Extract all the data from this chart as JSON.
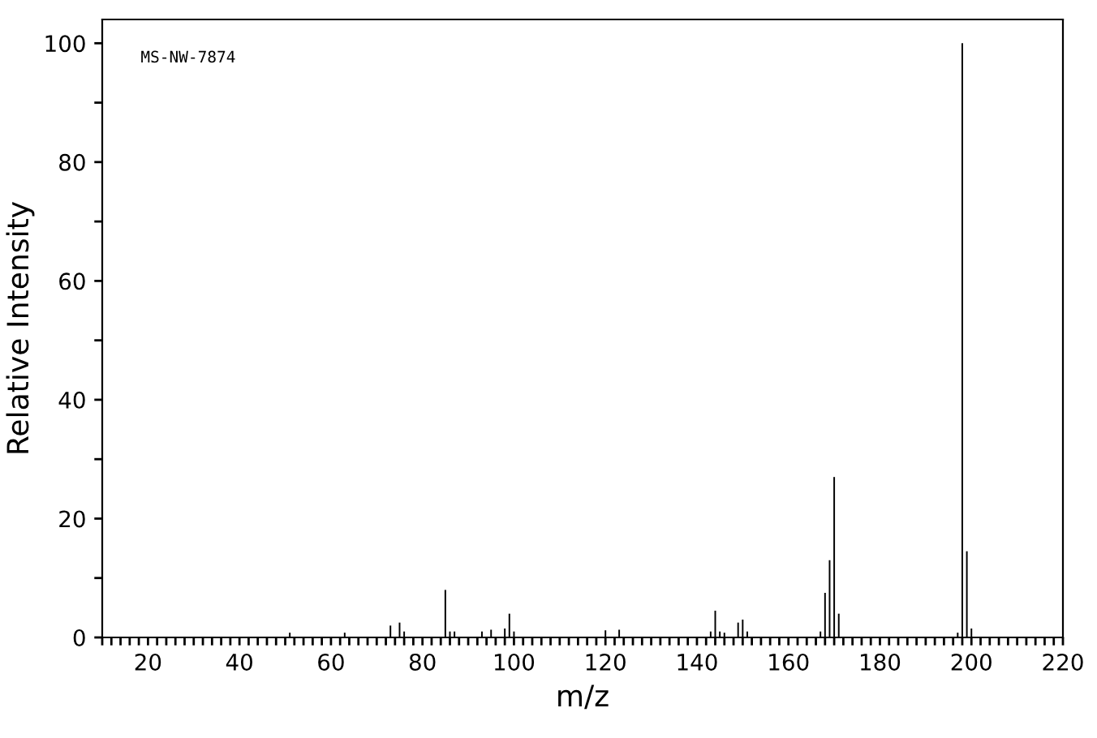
{
  "chart_data": {
    "type": "bar",
    "xlabel": "m/z",
    "ylabel": "Relative Intensity",
    "annotations": [
      "MS-NW-7874"
    ],
    "color": "#000000",
    "x": [
      51,
      63,
      73,
      75,
      76,
      85,
      86,
      87,
      93,
      95,
      98,
      99,
      100,
      120,
      123,
      143,
      144,
      145,
      146,
      149,
      150,
      151,
      167,
      168,
      169,
      170,
      171,
      197,
      198,
      199,
      200
    ],
    "values": [
      0.8,
      0.8,
      2,
      2.5,
      1,
      8,
      1,
      1,
      1,
      1.3,
      1.5,
      4,
      1,
      1.2,
      1.3,
      1,
      4.5,
      1,
      0.8,
      2.5,
      3,
      1,
      1,
      7.5,
      13,
      27,
      4,
      0.8,
      100,
      14.5,
      1.5
    ],
    "xlim": [
      10,
      220
    ],
    "ylim": [
      0,
      104
    ],
    "xticks": [
      {
        "value": 10,
        "label": null
      },
      {
        "value": 12,
        "label": null
      },
      {
        "value": 14,
        "label": null
      },
      {
        "value": 16,
        "label": null
      },
      {
        "value": 18,
        "label": null
      },
      20,
      {
        "value": 22,
        "label": null
      },
      {
        "value": 24,
        "label": null
      },
      {
        "value": 26,
        "label": null
      },
      {
        "value": 28,
        "label": null
      },
      {
        "value": 30,
        "label": null
      },
      {
        "value": 32,
        "label": null
      },
      {
        "value": 34,
        "label": null
      },
      {
        "value": 36,
        "label": null
      },
      {
        "value": 38,
        "label": null
      },
      40,
      {
        "value": 42,
        "label": null
      },
      {
        "value": 44,
        "label": null
      },
      {
        "value": 46,
        "label": null
      },
      {
        "value": 48,
        "label": null
      },
      {
        "value": 50,
        "label": null
      },
      {
        "value": 52,
        "label": null
      },
      {
        "value": 54,
        "label": null
      },
      {
        "value": 56,
        "label": null
      },
      {
        "value": 58,
        "label": null
      },
      60,
      {
        "value": 62,
        "label": null
      },
      {
        "value": 64,
        "label": null
      },
      {
        "value": 66,
        "label": null
      },
      {
        "value": 68,
        "label": null
      },
      {
        "value": 70,
        "label": null
      },
      {
        "value": 72,
        "label": null
      },
      {
        "value": 74,
        "label": null
      },
      {
        "value": 76,
        "label": null
      },
      {
        "value": 78,
        "label": null
      },
      80,
      {
        "value": 82,
        "label": null
      },
      {
        "value": 84,
        "label": null
      },
      {
        "value": 86,
        "label": null
      },
      {
        "value": 88,
        "label": null
      },
      {
        "value": 90,
        "label": null
      },
      {
        "value": 92,
        "label": null
      },
      {
        "value": 94,
        "label": null
      },
      {
        "value": 96,
        "label": null
      },
      {
        "value": 98,
        "label": null
      },
      100,
      {
        "value": 102,
        "label": null
      },
      {
        "value": 104,
        "label": null
      },
      {
        "value": 106,
        "label": null
      },
      {
        "value": 108,
        "label": null
      },
      {
        "value": 110,
        "label": null
      },
      {
        "value": 112,
        "label": null
      },
      {
        "value": 114,
        "label": null
      },
      {
        "value": 116,
        "label": null
      },
      {
        "value": 118,
        "label": null
      },
      120,
      {
        "value": 122,
        "label": null
      },
      {
        "value": 124,
        "label": null
      },
      {
        "value": 126,
        "label": null
      },
      {
        "value": 128,
        "label": null
      },
      {
        "value": 130,
        "label": null
      },
      {
        "value": 132,
        "label": null
      },
      {
        "value": 134,
        "label": null
      },
      {
        "value": 136,
        "label": null
      },
      {
        "value": 138,
        "label": null
      },
      140,
      {
        "value": 142,
        "label": null
      },
      {
        "value": 144,
        "label": null
      },
      {
        "value": 146,
        "label": null
      },
      {
        "value": 148,
        "label": null
      },
      {
        "value": 150,
        "label": null
      },
      {
        "value": 152,
        "label": null
      },
      {
        "value": 154,
        "label": null
      },
      {
        "value": 156,
        "label": null
      },
      {
        "value": 158,
        "label": null
      },
      160,
      {
        "value": 162,
        "label": null
      },
      {
        "value": 164,
        "label": null
      },
      {
        "value": 166,
        "label": null
      },
      {
        "value": 168,
        "label": null
      },
      {
        "value": 170,
        "label": null
      },
      {
        "value": 172,
        "label": null
      },
      {
        "value": 174,
        "label": null
      },
      {
        "value": 176,
        "label": null
      },
      {
        "value": 178,
        "label": null
      },
      180,
      {
        "value": 182,
        "label": null
      },
      {
        "value": 184,
        "label": null
      },
      {
        "value": 186,
        "label": null
      },
      {
        "value": 188,
        "label": null
      },
      {
        "value": 190,
        "label": null
      },
      {
        "value": 192,
        "label": null
      },
      {
        "value": 194,
        "label": null
      },
      {
        "value": 196,
        "label": null
      },
      {
        "value": 198,
        "label": null
      },
      200,
      {
        "value": 202,
        "label": null
      },
      {
        "value": 204,
        "label": null
      },
      {
        "value": 206,
        "label": null
      },
      {
        "value": 208,
        "label": null
      },
      {
        "value": 210,
        "label": null
      },
      {
        "value": 212,
        "label": null
      },
      {
        "value": 214,
        "label": null
      },
      {
        "value": 216,
        "label": null
      },
      {
        "value": 218,
        "label": null
      },
      220
    ],
    "yticks": [
      0,
      {
        "value": 10,
        "label": null
      },
      20,
      {
        "value": 30,
        "label": null
      },
      40,
      {
        "value": 50,
        "label": null
      },
      60,
      {
        "value": 70,
        "label": null
      },
      80,
      {
        "value": 90,
        "label": null
      },
      100
    ],
    "grid": false,
    "legend": false
  }
}
